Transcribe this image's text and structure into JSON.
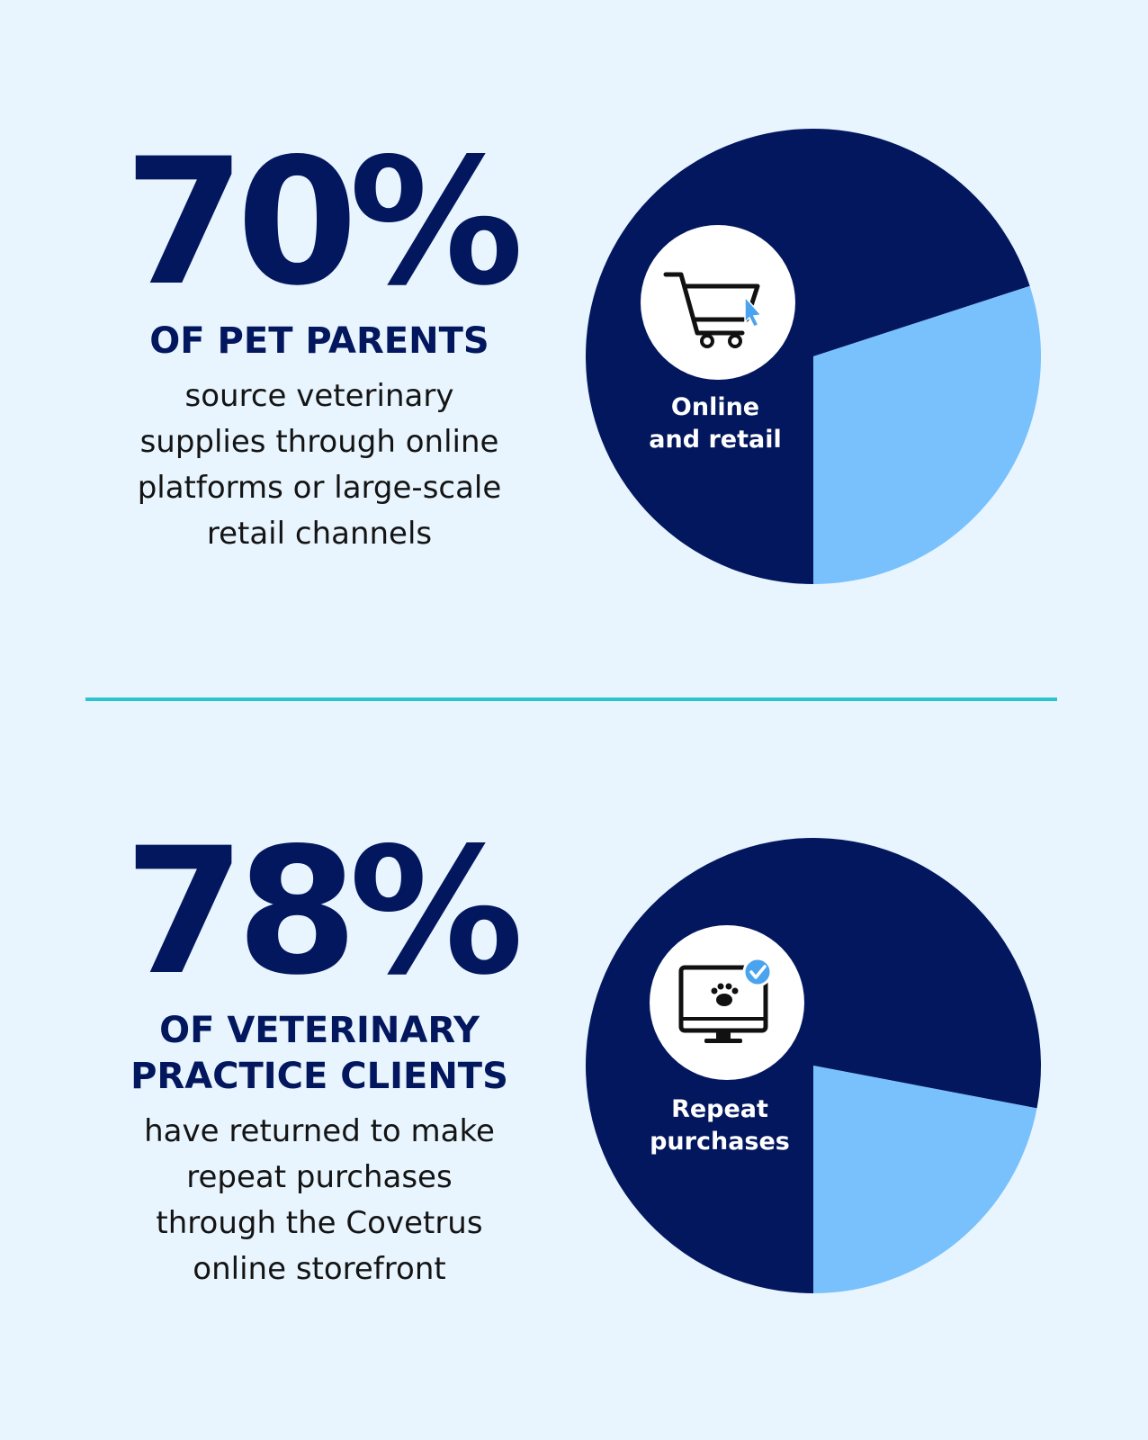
{
  "stats": [
    {
      "value": "70%",
      "heading": [
        "OF PET PARENTS"
      ],
      "description": [
        "source veterinary",
        "supplies through online",
        "platforms or large-scale",
        "retail channels"
      ]
    },
    {
      "value": "78%",
      "heading": [
        "OF VETERINARY",
        "PRACTICE CLIENTS"
      ],
      "description": [
        "have returned to make",
        "repeat purchases",
        "through the Covetrus",
        "online storefront"
      ]
    }
  ],
  "chart_data": [
    {
      "type": "pie",
      "slices": [
        {
          "label": "Online and retail",
          "value": 70,
          "color": "#03175e"
        },
        {
          "label": "",
          "value": 30,
          "color": "#79c1fc"
        }
      ],
      "center_label": [
        "Online",
        "and retail"
      ],
      "icon": "shopping-cart-icon"
    },
    {
      "type": "pie",
      "slices": [
        {
          "label": "Repeat purchases",
          "value": 78,
          "color": "#03175e"
        },
        {
          "label": "",
          "value": 22,
          "color": "#79c1fc"
        }
      ],
      "center_label": [
        "Repeat",
        "purchases"
      ],
      "icon": "computer-paw-icon"
    }
  ],
  "colors": {
    "dark": "#03175e",
    "light": "#79c1fc",
    "divider": "#2ec4cc",
    "background": "#e8f5fe"
  }
}
